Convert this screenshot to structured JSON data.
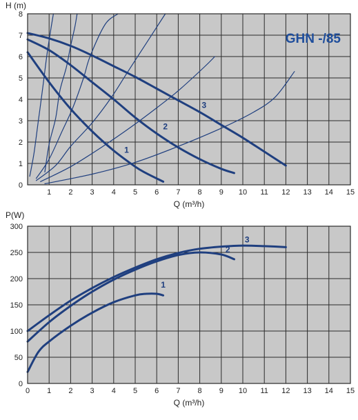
{
  "colors": {
    "plot_bg": "#c8c8c8",
    "grid": "#2a2a2a",
    "curve": "#1f3f7f",
    "title": "#1f4e9c",
    "text": "#222222"
  },
  "chart_data": [
    {
      "type": "line",
      "title": "GHN -/85",
      "xlabel": "Q (m³/h)",
      "ylabel": "H (m)",
      "xlim": [
        0,
        15
      ],
      "ylim": [
        0,
        8
      ],
      "xticks": [
        "1",
        "2",
        "3",
        "4",
        "5",
        "6",
        "7",
        "8",
        "9",
        "10",
        "11",
        "12",
        "13",
        "14",
        "15"
      ],
      "yticks": [
        "0",
        "1",
        "2",
        "3",
        "4",
        "5",
        "6",
        "7",
        "8"
      ],
      "grid": true,
      "series": [
        {
          "name": "1",
          "x": [
            0,
            1,
            2,
            3,
            4,
            5,
            5.5,
            6.3
          ],
          "y": [
            6.2,
            4.8,
            3.55,
            2.5,
            1.6,
            0.85,
            0.55,
            0.15
          ]
        },
        {
          "name": "2",
          "x": [
            0,
            1,
            2,
            3,
            4,
            5,
            6,
            7,
            8,
            9,
            9.6
          ],
          "y": [
            6.8,
            6.3,
            5.6,
            4.8,
            4.0,
            3.15,
            2.4,
            1.75,
            1.2,
            0.75,
            0.55
          ]
        },
        {
          "name": "3",
          "x": [
            0,
            1,
            2,
            3,
            4,
            5,
            6,
            7,
            8,
            9,
            10,
            11,
            12
          ],
          "y": [
            7.1,
            6.85,
            6.5,
            6.05,
            5.55,
            5.05,
            4.5,
            3.95,
            3.4,
            2.8,
            2.2,
            1.55,
            0.9
          ]
        },
        {
          "name": "",
          "x": [
            0.4,
            1.0,
            1.6,
            2.1,
            2.6,
            2.9,
            3.6,
            4.2
          ],
          "y": [
            0.3,
            1.2,
            2.5,
            3.6,
            5.0,
            6.0,
            7.5,
            8.0
          ]
        },
        {
          "name": "",
          "x": [
            0.4,
            1.3,
            2.0,
            3.0,
            3.9,
            4.6,
            5.5,
            6.4
          ],
          "y": [
            0.2,
            0.9,
            1.8,
            2.9,
            4.1,
            5.2,
            6.6,
            8.0
          ]
        },
        {
          "name": "",
          "x": [
            0.6,
            2.0,
            3.5,
            4.8,
            6.0,
            7.0,
            8.2,
            8.7
          ],
          "y": [
            0.15,
            0.85,
            1.8,
            2.7,
            3.6,
            4.4,
            5.5,
            6.0
          ]
        },
        {
          "name": "",
          "x": [
            0.8,
            3.0,
            5.0,
            7.0,
            9.0,
            10.5,
            11.5,
            12.4
          ],
          "y": [
            0.05,
            0.5,
            1.05,
            1.8,
            2.65,
            3.4,
            4.1,
            5.3
          ]
        },
        {
          "name": "",
          "x": [
            0.8,
            1.0,
            1.3,
            1.5,
            1.8,
            2.0,
            2.2,
            2.3
          ],
          "y": [
            0.6,
            1.9,
            3.1,
            4.4,
            5.5,
            6.5,
            7.4,
            8.0
          ]
        },
        {
          "name": "",
          "x": [
            0.1,
            0.3,
            0.5,
            0.7,
            0.9,
            1.1,
            1.2
          ],
          "y": [
            0.4,
            1.5,
            3.0,
            4.5,
            6.1,
            7.4,
            8.0
          ]
        }
      ],
      "annotations": [
        {
          "text": "1",
          "x": 4.6,
          "y": 1.5
        },
        {
          "text": "2",
          "x": 6.4,
          "y": 2.6
        },
        {
          "text": "3",
          "x": 8.2,
          "y": 3.6
        }
      ]
    },
    {
      "type": "line",
      "title": "",
      "xlabel": "Q (m³/h)",
      "ylabel": "P(W)",
      "xlim": [
        0,
        15
      ],
      "ylim": [
        0,
        300
      ],
      "xticks": [
        "0",
        "1",
        "2",
        "3",
        "4",
        "5",
        "6",
        "7",
        "8",
        "9",
        "10",
        "11",
        "12",
        "13",
        "14",
        "15"
      ],
      "yticks": [
        "0",
        "50",
        "100",
        "150",
        "200",
        "250",
        "300"
      ],
      "grid": true,
      "series": [
        {
          "name": "1",
          "x": [
            0,
            0.5,
            1,
            2,
            3,
            4,
            5,
            5.5,
            6,
            6.3
          ],
          "y": [
            22,
            60,
            80,
            110,
            135,
            155,
            168,
            171,
            171,
            168
          ]
        },
        {
          "name": "2",
          "x": [
            0,
            1,
            2,
            3,
            4,
            5,
            6,
            7,
            8,
            9,
            9.6
          ],
          "y": [
            80,
            117,
            148,
            175,
            198,
            217,
            233,
            245,
            250,
            246,
            237
          ]
        },
        {
          "name": "3",
          "x": [
            0,
            1,
            2,
            3,
            4,
            5,
            6,
            7,
            8,
            9,
            10,
            11,
            12
          ],
          "y": [
            100,
            130,
            158,
            182,
            203,
            221,
            237,
            249,
            257,
            261,
            263,
            262,
            260
          ]
        }
      ],
      "annotations": [
        {
          "text": "1",
          "x": 6.3,
          "y": 183
        },
        {
          "text": "2",
          "x": 9.3,
          "y": 250
        },
        {
          "text": "3",
          "x": 10.2,
          "y": 269
        }
      ]
    }
  ]
}
